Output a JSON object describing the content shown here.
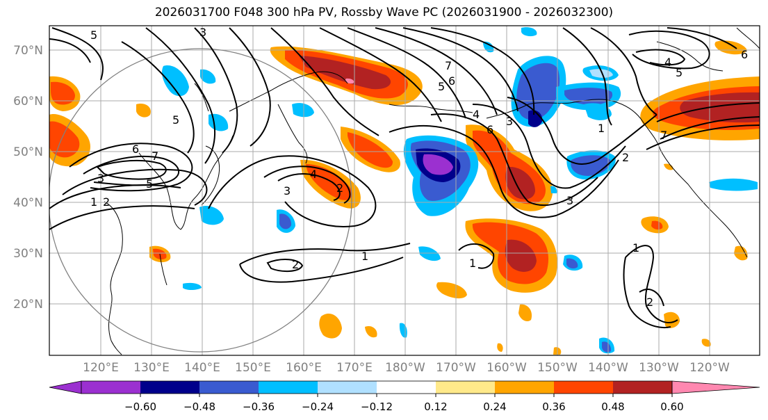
{
  "title": "2026031700 F048 300 hPa PV, Rossby Wave PC (2026031900 - 2026032300)",
  "lat_labels": [
    "70°N",
    "60°N",
    "50°N",
    "40°N",
    "30°N",
    "20°N"
  ],
  "lon_labels": [
    "120°E",
    "130°E",
    "140°E",
    "150°E",
    "160°E",
    "170°E",
    "180°W",
    "170°W",
    "160°W",
    "150°W",
    "140°W",
    "130°W",
    "120°W"
  ],
  "colorbar": {
    "colors": [
      "#9b30d0",
      "#00008b",
      "#3a5bd0",
      "#00bfff",
      "#b0e0ff",
      "#ffffff",
      "#ffe98a",
      "#ffa500",
      "#ff4500",
      "#b22222",
      "#ff88b0"
    ],
    "tick_labels": [
      "−0.60",
      "−0.48",
      "−0.36",
      "−0.24",
      "−0.12",
      "0.12",
      "0.24",
      "0.36",
      "0.48",
      "0.60"
    ]
  },
  "contour_labels": [
    "5",
    "6",
    "7",
    "5",
    "3",
    "1",
    "2",
    "3",
    "4",
    "5",
    "2",
    "1",
    "1",
    "2",
    "3",
    "4",
    "5",
    "6",
    "7",
    "4",
    "5",
    "6",
    "7",
    "1",
    "2",
    "3",
    "1",
    "6",
    "2",
    "3"
  ]
}
